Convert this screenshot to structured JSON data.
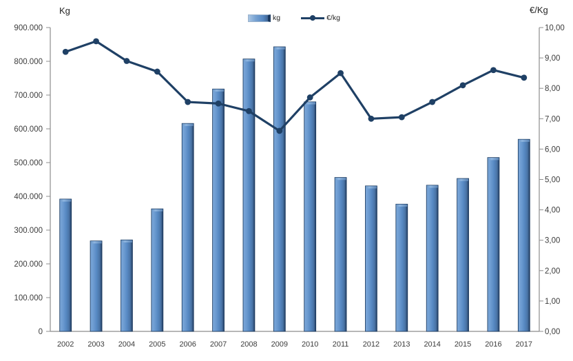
{
  "chart_data": {
    "type": "bar",
    "subtype": "combo-bar-line-two-axes",
    "categories": [
      "2002",
      "2003",
      "2004",
      "2005",
      "2006",
      "2007",
      "2008",
      "2009",
      "2010",
      "2011",
      "2012",
      "2013",
      "2014",
      "2015",
      "2016",
      "2017"
    ],
    "series": [
      {
        "name": "kg",
        "type": "bar",
        "axis": "left",
        "values": [
          392000,
          268000,
          271000,
          363000,
          616000,
          718000,
          807000,
          843000,
          680000,
          456000,
          431000,
          377000,
          433000,
          453000,
          515000,
          569000
        ]
      },
      {
        "name": "€/kg",
        "type": "line",
        "axis": "right",
        "values": [
          9.2,
          9.55,
          8.9,
          8.55,
          7.55,
          7.5,
          7.25,
          6.6,
          7.7,
          8.5,
          7.0,
          7.05,
          7.55,
          8.1,
          8.6,
          8.35
        ]
      }
    ],
    "y_left": {
      "title": "Kg",
      "min": 0,
      "max": 900000,
      "step": 100000,
      "tick_labels": [
        "900.000",
        "800.000",
        "700.000",
        "600.000",
        "500.000",
        "400.000",
        "300.000",
        "200.000",
        "100.000",
        "0"
      ]
    },
    "y_right": {
      "title": "€/Kg",
      "min": 0,
      "max": 10,
      "step": 1,
      "tick_labels": [
        "10,00",
        "9,00",
        "8,00",
        "7,00",
        "6,00",
        "5,00",
        "4,00",
        "3,00",
        "2,00",
        "1,00",
        "0,00"
      ]
    },
    "legend": {
      "position": "top-center",
      "items": [
        {
          "label": "kg",
          "marker": "bar"
        },
        {
          "label": "€/kg",
          "marker": "line-dot"
        }
      ]
    },
    "grid": false,
    "colors": {
      "bar_body": "#5688c2",
      "bar_light": "#7aa6d8",
      "bar_dark": "#21395a",
      "bar_cap": "#8fb6e0",
      "bar_stroke": "#16365c",
      "line": "#1f4065",
      "axis": "#8c8c8c",
      "text": "#3c3c3c"
    }
  }
}
